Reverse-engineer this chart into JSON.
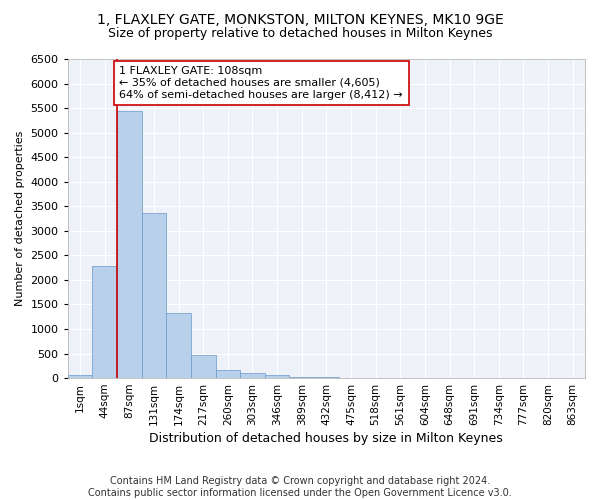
{
  "title1": "1, FLAXLEY GATE, MONKSTON, MILTON KEYNES, MK10 9GE",
  "title2": "Size of property relative to detached houses in Milton Keynes",
  "xlabel": "Distribution of detached houses by size in Milton Keynes",
  "ylabel": "Number of detached properties",
  "footnote1": "Contains HM Land Registry data © Crown copyright and database right 2024.",
  "footnote2": "Contains public sector information licensed under the Open Government Licence v3.0.",
  "bar_labels": [
    "1sqm",
    "44sqm",
    "87sqm",
    "131sqm",
    "174sqm",
    "217sqm",
    "260sqm",
    "303sqm",
    "346sqm",
    "389sqm",
    "432sqm",
    "475sqm",
    "518sqm",
    "561sqm",
    "604sqm",
    "648sqm",
    "691sqm",
    "734sqm",
    "777sqm",
    "820sqm",
    "863sqm"
  ],
  "bar_values": [
    70,
    2280,
    5450,
    3370,
    1320,
    475,
    160,
    95,
    55,
    30,
    15,
    10,
    5,
    3,
    2,
    1,
    1,
    0,
    0,
    0,
    0
  ],
  "bar_color": "#b8d0ea",
  "bar_edge_color": "#6699cc",
  "annotation_box_text": "1 FLAXLEY GATE: 108sqm\n← 35% of detached houses are smaller (4,605)\n64% of semi-detached houses are larger (8,412) →",
  "vline_bar_index": 2,
  "vline_color": "#cc0000",
  "ylim": [
    0,
    6500
  ],
  "background_color": "#eef2f8",
  "grid_color": "#ffffff",
  "fig_bg_color": "#ffffff",
  "title1_fontsize": 10,
  "title2_fontsize": 9,
  "annotation_fontsize": 8,
  "xlabel_fontsize": 9,
  "ylabel_fontsize": 8,
  "footnote_fontsize": 7,
  "ytick_fontsize": 8,
  "xtick_fontsize": 7.5
}
